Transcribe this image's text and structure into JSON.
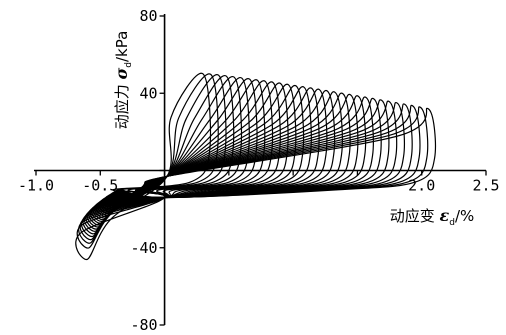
{
  "chart_data": {
    "type": "line",
    "title": "",
    "xlabel": {
      "prefix": "动应变 ",
      "symbol": "ε",
      "sub": "d",
      "suffix": "/%"
    },
    "ylabel": {
      "prefix": "动应力 ",
      "symbol": "σ",
      "sub": "d",
      "suffix": "/kPa"
    },
    "xlim": [
      -1.0,
      2.5
    ],
    "ylim": [
      -80,
      80
    ],
    "xticks": [
      -1.0,
      -0.5,
      0,
      0.5,
      1.0,
      1.5,
      2.0,
      2.5
    ],
    "xtick_labels": [
      "-1.0",
      "-0.5",
      "",
      "",
      "",
      "",
      "2.0",
      "2.5"
    ],
    "yticks": [
      -80,
      -40,
      0,
      40,
      80
    ],
    "ytick_labels": [
      "-80",
      "-40",
      "",
      "40",
      "80"
    ],
    "grid": false,
    "legend": "none",
    "series": [
      {
        "description_values": "cyclic hysteresis loops, 30 cycles",
        "cycles": 30,
        "loop_start_strain": -0.6,
        "loop_end_strain": 2.05,
        "peak_stress_min": 32,
        "peak_stress_max": 50,
        "valley_stress_min": -46,
        "valley_stress_max": -14,
        "values": []
      }
    ]
  }
}
